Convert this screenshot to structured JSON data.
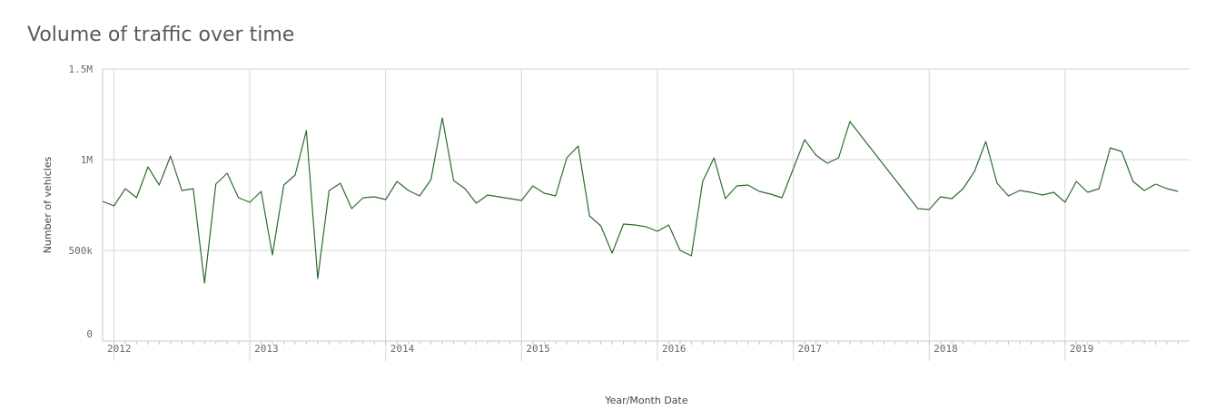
{
  "title": "Volume of traffic over time",
  "chart_data": {
    "type": "line",
    "title": "Volume of traffic over time",
    "xlabel": "Year/Month Date",
    "ylabel": "Number of vehicles",
    "ylim": [
      0,
      1500000
    ],
    "yticks": [
      {
        "value": 0,
        "label": "0"
      },
      {
        "value": 500000,
        "label": "500k"
      },
      {
        "value": 1000000,
        "label": "1M"
      },
      {
        "value": 1500000,
        "label": "1.5M"
      }
    ],
    "xlim": [
      "2011-12",
      "2019-12"
    ],
    "year_ticks": [
      {
        "date": "2012-01",
        "label": "2012"
      },
      {
        "date": "2013-01",
        "label": "2013"
      },
      {
        "date": "2014-01",
        "label": "2014"
      },
      {
        "date": "2015-01",
        "label": "2015"
      },
      {
        "date": "2016-01",
        "label": "2016"
      },
      {
        "date": "2017-01",
        "label": "2017"
      },
      {
        "date": "2018-01",
        "label": "2018"
      },
      {
        "date": "2019-01",
        "label": "2019"
      }
    ],
    "grid": true,
    "color": "#2e6b2e",
    "series": [
      {
        "points": [
          [
            "2011-12",
            770000
          ],
          [
            "2012-01",
            745000
          ],
          [
            "2012-02",
            840000
          ],
          [
            "2012-03",
            790000
          ],
          [
            "2012-04",
            960000
          ],
          [
            "2012-05",
            860000
          ],
          [
            "2012-06",
            1020000
          ],
          [
            "2012-07",
            830000
          ],
          [
            "2012-08",
            840000
          ],
          [
            "2012-09",
            320000
          ],
          [
            "2012-10",
            865000
          ],
          [
            "2012-11",
            925000
          ],
          [
            "2012-12",
            790000
          ],
          [
            "2013-01",
            765000
          ],
          [
            "2013-02",
            825000
          ],
          [
            "2013-03",
            475000
          ],
          [
            "2013-04",
            860000
          ],
          [
            "2013-05",
            915000
          ],
          [
            "2013-06",
            1160000
          ],
          [
            "2013-07",
            345000
          ],
          [
            "2013-08",
            830000
          ],
          [
            "2013-09",
            870000
          ],
          [
            "2013-10",
            730000
          ],
          [
            "2013-11",
            790000
          ],
          [
            "2013-12",
            795000
          ],
          [
            "2014-01",
            780000
          ],
          [
            "2014-02",
            880000
          ],
          [
            "2014-03",
            830000
          ],
          [
            "2014-04",
            800000
          ],
          [
            "2014-05",
            890000
          ],
          [
            "2014-06",
            1230000
          ],
          [
            "2014-07",
            885000
          ],
          [
            "2014-08",
            840000
          ],
          [
            "2014-09",
            760000
          ],
          [
            "2014-10",
            805000
          ],
          [
            "2014-11",
            795000
          ],
          [
            "2014-12",
            785000
          ],
          [
            "2015-01",
            775000
          ],
          [
            "2015-02",
            855000
          ],
          [
            "2015-03",
            815000
          ],
          [
            "2015-04",
            800000
          ],
          [
            "2015-05",
            1010000
          ],
          [
            "2015-06",
            1075000
          ],
          [
            "2015-07",
            690000
          ],
          [
            "2015-08",
            635000
          ],
          [
            "2015-09",
            485000
          ],
          [
            "2015-10",
            645000
          ],
          [
            "2015-11",
            640000
          ],
          [
            "2015-12",
            630000
          ],
          [
            "2016-01",
            605000
          ],
          [
            "2016-02",
            640000
          ],
          [
            "2016-03",
            500000
          ],
          [
            "2016-04",
            470000
          ],
          [
            "2016-05",
            880000
          ],
          [
            "2016-06",
            1010000
          ],
          [
            "2016-07",
            785000
          ],
          [
            "2016-08",
            855000
          ],
          [
            "2016-09",
            860000
          ],
          [
            "2016-10",
            825000
          ],
          [
            "2016-11",
            810000
          ],
          [
            "2016-12",
            790000
          ],
          [
            "2017-02",
            1110000
          ],
          [
            "2017-03",
            1025000
          ],
          [
            "2017-04",
            980000
          ],
          [
            "2017-05",
            1010000
          ],
          [
            "2017-06",
            1210000
          ],
          [
            "2017-12",
            730000
          ],
          [
            "2018-01",
            725000
          ],
          [
            "2018-02",
            795000
          ],
          [
            "2018-03",
            785000
          ],
          [
            "2018-04",
            840000
          ],
          [
            "2018-05",
            935000
          ],
          [
            "2018-06",
            1100000
          ],
          [
            "2018-07",
            870000
          ],
          [
            "2018-08",
            800000
          ],
          [
            "2018-09",
            830000
          ],
          [
            "2018-10",
            820000
          ],
          [
            "2018-11",
            805000
          ],
          [
            "2018-12",
            820000
          ],
          [
            "2019-01",
            765000
          ],
          [
            "2019-02",
            880000
          ],
          [
            "2019-03",
            820000
          ],
          [
            "2019-04",
            840000
          ],
          [
            "2019-05",
            1065000
          ],
          [
            "2019-06",
            1045000
          ],
          [
            "2019-07",
            880000
          ],
          [
            "2019-08",
            830000
          ],
          [
            "2019-09",
            865000
          ],
          [
            "2019-10",
            840000
          ],
          [
            "2019-11",
            825000
          ]
        ]
      }
    ]
  }
}
